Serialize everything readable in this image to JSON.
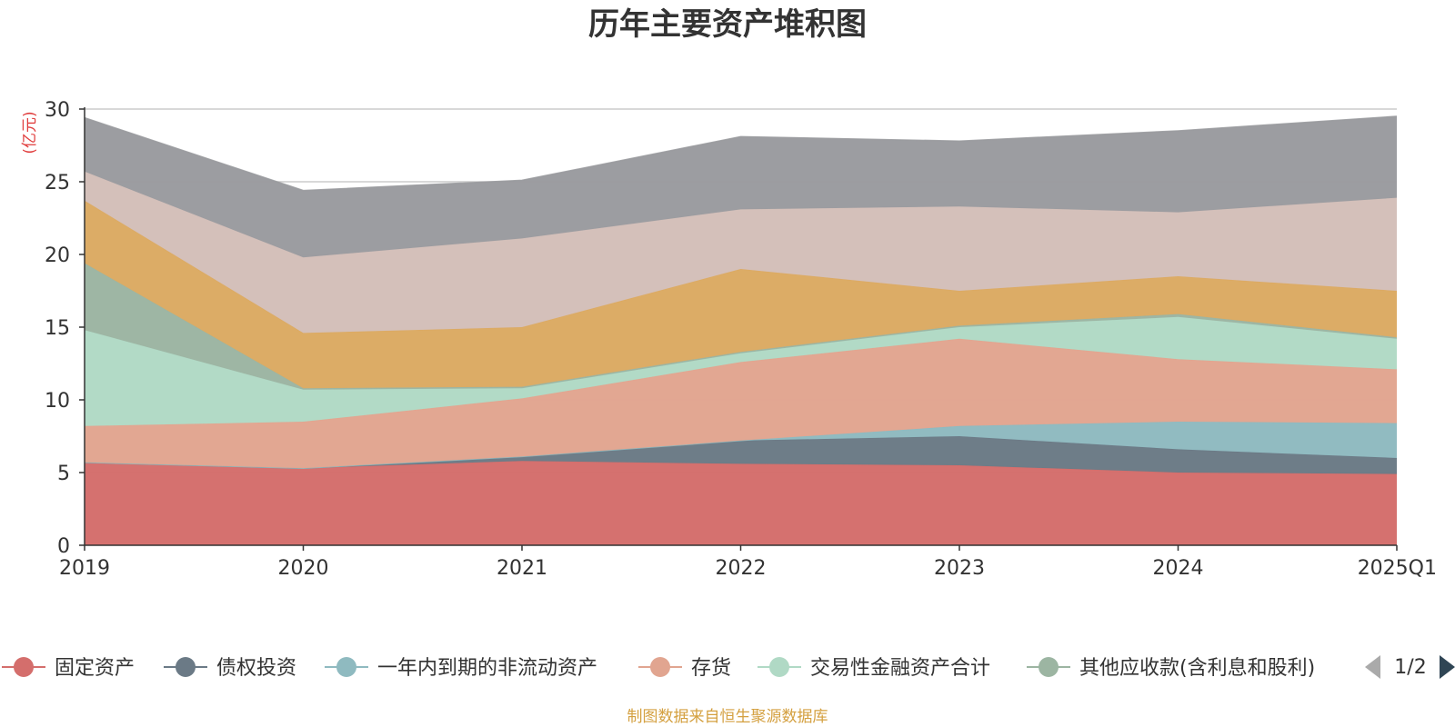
{
  "chart_data": {
    "type": "area",
    "title": "历年主要资产堆积图",
    "ylabel": "(亿元)",
    "ylim": [
      0,
      30
    ],
    "yticks": [
      0,
      5,
      10,
      15,
      20,
      25,
      30
    ],
    "categories": [
      "2019",
      "2020",
      "2021",
      "2022",
      "2023",
      "2024",
      "2025Q1"
    ],
    "stacked": true,
    "grid": true,
    "series": [
      {
        "name": "固定资产",
        "color": "#d46e6c",
        "values": [
          5.7,
          5.3,
          5.8,
          5.6,
          5.5,
          5.0,
          4.9
        ]
      },
      {
        "name": "债权投资",
        "color": "#6b7a86",
        "values": [
          0.0,
          0.0,
          0.3,
          1.6,
          2.0,
          1.6,
          1.1
        ]
      },
      {
        "name": "一年内到期的非流动资产",
        "color": "#8fbac0",
        "values": [
          0.0,
          0.0,
          0.0,
          0.0,
          0.7,
          1.9,
          2.4
        ]
      },
      {
        "name": "存货",
        "color": "#e1a590",
        "values": [
          2.5,
          3.2,
          4.0,
          5.4,
          6.0,
          4.3,
          3.7
        ]
      },
      {
        "name": "交易性金融资产合计",
        "color": "#b0d9c5",
        "values": [
          6.6,
          2.2,
          0.7,
          0.6,
          0.8,
          2.9,
          2.1
        ]
      },
      {
        "name": "其他应收款(含利息和股利)",
        "color": "#9cb5a2",
        "values": [
          4.6,
          0.1,
          0.1,
          0.1,
          0.1,
          0.2,
          0.1
        ]
      },
      {
        "name": "",
        "color": "#dbaa63",
        "values": [
          4.3,
          3.8,
          4.1,
          5.7,
          2.4,
          2.6,
          3.2
        ]
      },
      {
        "name": "",
        "color": "#d3bfb9",
        "values": [
          2.0,
          5.2,
          6.1,
          4.1,
          5.8,
          4.4,
          6.4
        ]
      },
      {
        "name": "",
        "color": "#9a9b9f",
        "values": [
          3.7,
          4.6,
          4.0,
          5.0,
          4.5,
          5.6,
          5.6
        ]
      }
    ],
    "legend_position": "bottom",
    "legend_page": "1/2",
    "source_note": "制图数据来自恒生聚源数据库"
  }
}
